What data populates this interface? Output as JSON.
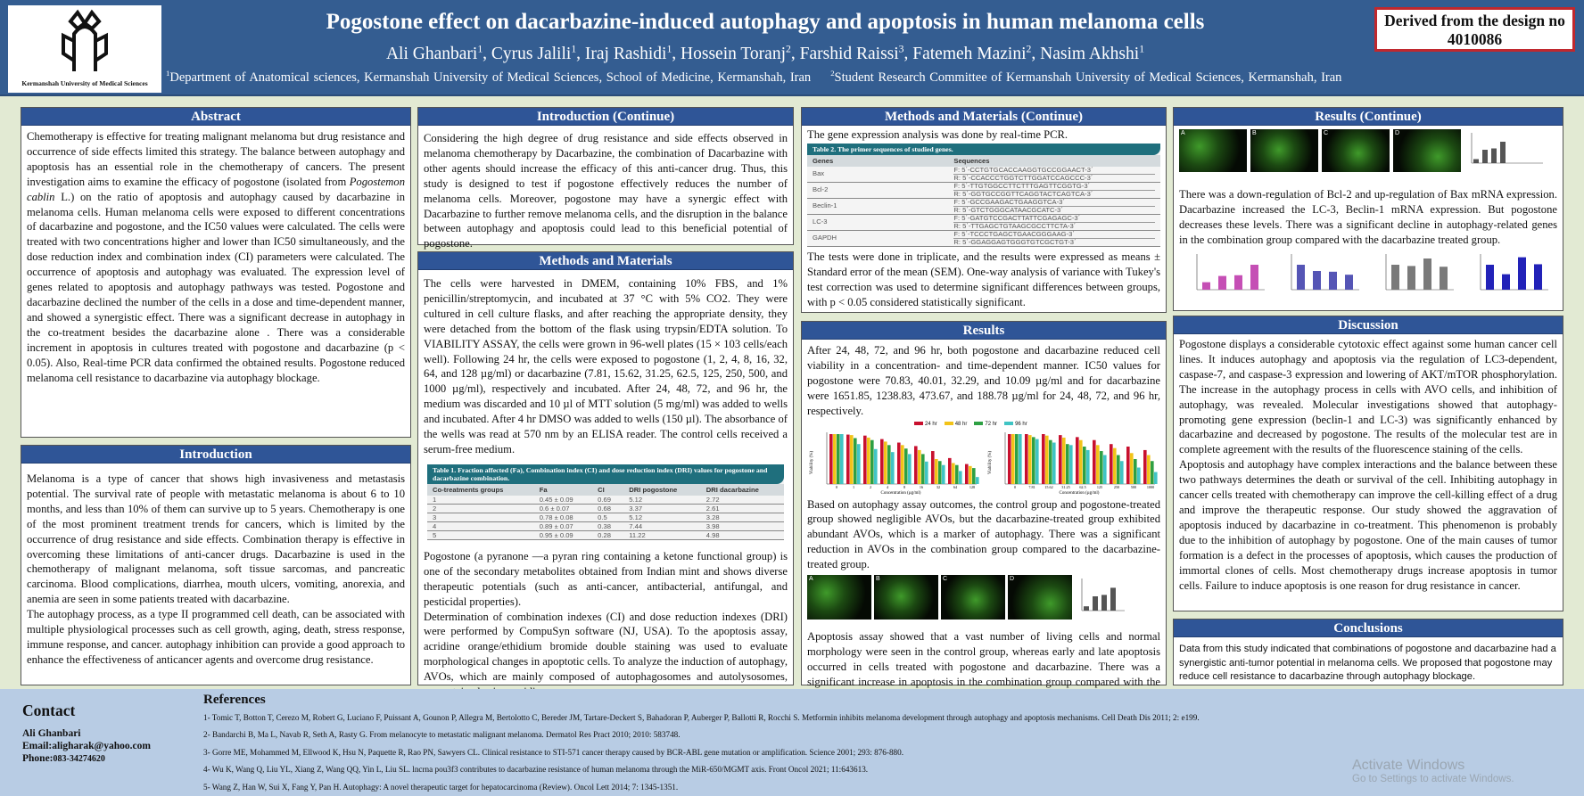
{
  "header": {
    "logo_text": "Kermanshah University of Medical Sciences",
    "title": "Pogostone effect on dacarbazine-induced autophagy and apoptosis in human melanoma cells",
    "authors": [
      {
        "name": "Ali Ghanbari",
        "sup": "1"
      },
      {
        "name": "Cyrus Jalili",
        "sup": "1"
      },
      {
        "name": "Iraj Rashidi",
        "sup": "1"
      },
      {
        "name": "Hossein Toranj",
        "sup": "2"
      },
      {
        "name": "Farshid Raissi",
        "sup": "3"
      },
      {
        "name": "Fatemeh Mazini",
        "sup": "2"
      },
      {
        "name": "Nasim Akhshi",
        "sup": "1"
      }
    ],
    "affiliations": [
      {
        "sup": "1",
        "text": "Department of Anatomical sciences, Kermanshah University of Medical Sciences, School of Medicine, Kermanshah, Iran"
      },
      {
        "sup": "2",
        "text": "Student Research Committee of Kermanshah University of Medical Sciences, Kermanshah, Iran"
      }
    ],
    "derived": "Derived from the design no 4010086"
  },
  "colors": {
    "header_bg": "#345d91",
    "section_header": "#2f5597",
    "page_bg": "#e2ead3",
    "footer_bg": "#b8cce4",
    "table_teal": "#1f6f7d",
    "derived_border": "#c0282e"
  },
  "abstract": {
    "title": "Abstract",
    "text_before": "Chemotherapy is effective for treating malignant melanoma but drug resistance and occurrence of side effects limited this strategy. The balance between autophagy and apoptosis has an essential role in the chemotherapy of cancers. The present investigation aims to examine the efficacy of pogostone (isolated from ",
    "text_italic": "Pogostemon cablin",
    "text_after": " L.) on the ratio of apoptosis and autophagy caused by dacarbazine in melanoma cells. Human melanoma cells were exposed to different concentrations of dacarbazine and pogostone, and the IC50 values were calculated. The cells were treated with two concentrations higher and lower than IC50 simultaneously, and the dose reduction index and combination index (CI) parameters were calculated. The occurrence of apoptosis and autophagy was evaluated. The expression level of genes related to apoptosis and autophagy pathways was tested. Pogostone and dacarbazine declined the number of the cells in a dose and time-dependent manner, and showed a synergistic effect. There was a significant decrease in autophagy in the co-treatment besides the dacarbazine alone . There was a considerable increment in apoptosis in cultures treated with pogostone and dacarbazine (p < 0.05). Also, Real-time PCR data confirmed the obtained results. Pogostone reduced melanoma cell resistance to dacarbazine via autophagy blockage."
  },
  "introduction": {
    "title": "Introduction",
    "paragraphs": [
      "Melanoma is a type of cancer that shows high invasiveness and metastasis potential. The survival rate of people with metastatic melanoma is about 6 to 10 months, and less than 10% of them can survive up to 5 years. Chemotherapy is one of the most prominent treatment trends for cancers, which is limited by the occurrence of drug resistance and side effects. Combination therapy is effective in overcoming these limitations of anti-cancer drugs. Dacarbazine is used in the chemotherapy of malignant melanoma, soft tissue sarcomas, and pancreatic carcinoma. Blood complications, diarrhea, mouth ulcers, vomiting, anorexia, and anemia are seen in some patients treated with dacarbazine.",
      "The autophagy process, as a type II programmed cell death, can be associated with multiple physiological processes such as cell growth, aging, death, stress response, immune response, and cancer. autophagy inhibition can provide a good approach to enhance the effectiveness of anticancer agents and overcome drug resistance."
    ]
  },
  "introduction_cont": {
    "title": "Introduction (Continue)",
    "text": "Considering the high degree of drug resistance and side effects observed in melanoma chemotherapy by Dacarbazine, the combination of Dacarbazine with other agents should increase the efficacy of this anti-cancer drug. Thus, this study is designed to test if pogostone effectively reduces the number of melanoma cells. Moreover, pogostone may have a synergic effect with Dacarbazine to further remove melanoma cells, and the disruption in the balance between autophagy and apoptosis could lead to this beneficial potential of pogostone."
  },
  "methods": {
    "title": "Methods and Materials",
    "paragraphs": [
      "The cells were harvested in DMEM, containing 10% FBS, and 1% penicillin/streptomycin, and incubated at 37 °C with 5% CO2. They were cultured in cell culture flasks, and after reaching the appropriate density, they were detached from the bottom of the flask using trypsin/EDTA solution. To VIABILITY ASSAY, the cells were grown in 96-well plates (15 × 103 cells/each well). Following 24 hr, the cells were exposed to pogostone (1, 2, 4, 8, 16, 32, 64, and 128 µg/ml) or dacarbazine (7.81, 15.62, 31.25, 62.5, 125, 250, 500, and 1000 µg/ml), respectively and incubated. After 24, 48, 72, and 96 hr, the medium was discarded and 10 µl of MTT solution (5 mg/ml) was added to wells and incubated. After 4 hr DMSO was added to wells (150 µl). The absorbance of the wells was read at 570 nm by an ELISA reader. The control cells received a serum-free medium.",
      "Pogostone (a pyranone —a pyran ring containing a ketone functional group) is one of the secondary metabolites obtained from Indian mint and shows diverse therapeutic potentials (such as anti-cancer, antibacterial, antifungal, and pesticidal properties).",
      "Determination of combination indexes (CI) and dose reduction indexes (DRI) were performed by CompuSyn software (NJ, USA). To the apoptosis assay, acridine orange/ethidium bromide double staining was used to evaluate morphological changes in apoptotic cells. To analyze the induction of autophagy, AVOs, which are mainly composed of autophagosomes and autolysosomes, were stained using acridine orange."
    ],
    "table1": {
      "caption": "Table 1. Fraction affected (Fa), Combination index (CI) and dose reduction index (DRI) values for pogostone and dacarbazine combination.",
      "headers": [
        "Co-treatments groups",
        "Fa",
        "CI",
        "DRI pogostone",
        "DRI dacarbazine"
      ],
      "rows": [
        [
          "1",
          "0.45 ± 0.09",
          "0.69",
          "5.12",
          "2.72"
        ],
        [
          "2",
          "0.6 ± 0.07",
          "0.68",
          "3.37",
          "2.61"
        ],
        [
          "3",
          "0.78 ± 0.08",
          "0.5",
          "5.12",
          "3.28"
        ],
        [
          "4",
          "0.89 ± 0.07",
          "0.38",
          "7.44",
          "3.98"
        ],
        [
          "5",
          "0.95 ± 0.09",
          "0.28",
          "11.22",
          "4.98"
        ]
      ]
    }
  },
  "methods_cont": {
    "title": "Methods and Materials (Continue)",
    "intro": "The gene expression analysis was done by real-time PCR.",
    "table2": {
      "caption": "Table 2. The primer sequences of studied genes.",
      "headers": [
        "Genes",
        "Sequences"
      ],
      "rows": [
        [
          "Bax",
          "F: 5΄-CCTGTGCACCAAGGTGCCGGAACT-3΄",
          "R: 5΄-CCACCCTGGTCTTGGATCCAGCCC-3΄"
        ],
        [
          "Bcl-2",
          "F: 5΄-TTGTGGCCTTCTTTGAGTTCGGTG-3΄",
          "R: 5΄-GGTGCCGGTTCAGGTACTCAGTCA-3΄"
        ],
        [
          "Beclin-1",
          "F: 5΄-GCCGAAGACTGAAGGTCA-3΄",
          "R: 5΄-GTCTGGGCATAACGCATC-3΄"
        ],
        [
          "LC-3",
          "F: 5΄-GATGTCCGACTTATTCGAGAGC-3΄",
          "R: 5΄-TTGAGCTGTAAGCGCCTTCTA-3΄"
        ],
        [
          "GAPDH",
          "F: 5΄-TCCCTGAGCTGAACGGGAAG-3΄",
          "R: 5΄-GGAGGAGTGGGTGTCGCTGT-3΄"
        ]
      ]
    },
    "text": "The tests were done in triplicate, and the results were expressed as means ± Standard error of the mean (SEM). One-way analysis of variance with Tukey's test correction was used to determine significant differences between groups, with p < 0.05 considered statistically significant."
  },
  "results": {
    "title": "Results",
    "paragraphs": [
      "After 24, 48, 72, and 96 hr, both pogostone and dacarbazine reduced cell viability in a concentration- and time-dependent manner. IC50 values for pogostone were 70.83, 40.01, 32.29, and 10.09 µg/ml and for dacarbazine were 1651.85, 1238.83, 473.67, and 188.78 µg/ml for 24, 48, 72, and 96 hr, respectively.",
      "Based on autophagy assay outcomes, the control group and pogostone-treated group showed negligible AVOs, but the dacarbazine-treated group exhibited abundant AVOs, which is a marker of autophagy. There was a significant reduction in AVOs in the combination group compared to the dacarbazine-treated group.",
      "Apoptosis assay showed that a vast number of living cells and normal morphology were seen in the control group, whereas early and late apoptosis occurred in cells treated with pogostone and dacarbazine. There was a significant increase in apoptosis in the combination group compared with the dacarbazine treated group."
    ],
    "viability_legend": [
      "24 hr",
      "48 hr",
      "72 hr",
      "96 hr"
    ],
    "viability_colors": [
      "#c8102e",
      "#f2c318",
      "#2ea043",
      "#40c4c4"
    ],
    "viability_ylabel": "Viability (%)",
    "viability_xlabel": "Concentration (µg/ml)",
    "pogostone_ticks": [
      "0",
      "1",
      "2",
      "4",
      "8",
      "16",
      "32",
      "64",
      "128"
    ],
    "dacarbazine_ticks": [
      "0",
      "7.81",
      "15.62",
      "31.25",
      "62.5",
      "125",
      "250",
      "500",
      "1000"
    ],
    "panel_labels": [
      "A",
      "B",
      "C",
      "D"
    ]
  },
  "results_cont": {
    "title": "Results (Continue)",
    "panel_labels": [
      "A",
      "B",
      "C",
      "D"
    ],
    "text": "There was a down-regulation of Bcl-2 and up-regulation of Bax mRNA expression. Dacarbazine increased the LC-3, Beclin-1 mRNA expression. But pogostone decreases these levels. There was a significant decline in autophagy-related genes in the combination group compared with the dacarbazine treated group.",
    "gene_chart_colors": [
      "#c54fb5",
      "#5555b5",
      "#7a7a7a",
      "#2222b8"
    ]
  },
  "discussion": {
    "title": "Discussion",
    "paragraphs": [
      "Pogostone displays a considerable cytotoxic effect against some human cancer cell lines. It induces autophagy and apoptosis via the regulation of LC3-dependent, caspase-7, and caspase-3 expression and lowering of AKT/mTOR phosphorylation. The increase in the autophagy process in cells with AVO cells, and inhibition of autophagy, was revealed. Molecular investigations showed that autophagy-promoting gene expression (beclin-1 and LC-3) was significantly enhanced by dacarbazine and decreased by pogostone. The results of the molecular test are in complete agreement with the results of the fluorescence staining of the cells.",
      "Apoptosis and autophagy have complex interactions and the balance between these two pathways determines the death or survival of the cell. Inhibiting autophagy in cancer cells treated with chemotherapy can improve the cell-killing effect of a drug and improve the therapeutic response. Our study showed the aggravation of apoptosis induced by dacarbazine in co-treatment. This phenomenon is probably due to the inhibition of autophagy by pogostone. One of the main causes of tumor formation is a defect in the processes of apoptosis, which causes the production of immortal clones of cells. Most chemotherapy drugs increase apoptosis in tumor cells. Failure to induce apoptosis is one reason for drug resistance in cancer."
    ]
  },
  "conclusions": {
    "title": "Conclusions",
    "text": "Data from this study indicated that combinations of pogostone and dacarbazine had a synergistic anti-tumor potential in melanoma cells. We proposed that pogostone may reduce cell resistance to dacarbazine through autophagy blockage."
  },
  "contact": {
    "title": "Contact",
    "name": "Ali Ghanbari",
    "email": "Email:aligharak@yahoo.com",
    "phone_label": "Phone:",
    "phone": "083-34274620"
  },
  "references": {
    "title": "References",
    "items": [
      "1- Tomic T, Botton T, Cerezo M, Robert G, Luciano F, Puissant A, Gounon P, Allegra M, Bertolotto C, Bereder JM, Tartare-Deckert S, Bahadoran P, Auberger P, Ballotti R, Rocchi S. Metformin inhibits melanoma development through autophagy and apoptosis mechanisms. Cell Death Dis 2011; 2: e199.",
      "2- Bandarchi B, Ma L, Navab R, Seth A, Rasty G. From melanocyte to metastatic malignant melanoma. Dermatol Res Pract 2010; 2010: 583748.",
      "3- Gorre ME, Mohammed M, Ellwood K, Hsu N, Paquette R, Rao PN, Sawyers CL. Clinical resistance to STI-571 cancer therapy caused by BCR-ABL gene mutation or amplification. Science 2001; 293: 876-880.",
      "4- Wu K, Wang Q, Liu YL, Xiang Z, Wang QQ, Yin L, Liu SL. lncrna pou3f3 contributes to dacarbazine resistance of human melanoma through the MiR-650/MGMT axis. Front Oncol 2021; 11:643613.",
      "5- Wang Z, Han W, Sui X, Fang Y, Pan H. Autophagy: A novel therapeutic target for hepatocarcinoma (Review). Oncol Lett 2014; 7: 1345-1351."
    ]
  },
  "watermark": {
    "line1": "Activate Windows",
    "line2": "Go to Settings to activate Windows."
  }
}
